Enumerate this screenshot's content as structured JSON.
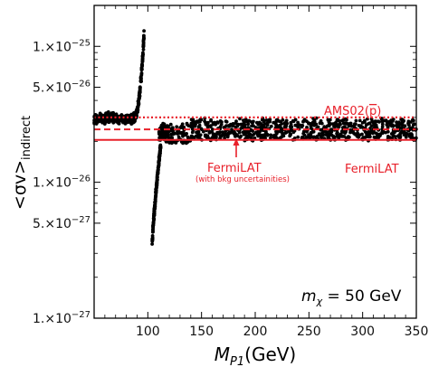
{
  "chart_data": {
    "type": "scatter",
    "x_axis": {
      "label": "M",
      "label_subscript": "P1",
      "label_unit": "(GeV)",
      "lim": [
        50,
        350
      ],
      "ticks": [
        100,
        150,
        200,
        250,
        300,
        350
      ],
      "tick_labels": [
        "100",
        "150",
        "200",
        "250",
        "300",
        "350"
      ]
    },
    "y_axis": {
      "label": "<σv>",
      "label_subscript": "indirect",
      "scale": "log",
      "lim": [
        1e-27,
        2e-25
      ],
      "major_ticks": [
        1e-27,
        5e-27,
        1e-26,
        5e-26,
        1e-25
      ],
      "tick_labels": [
        "1.×10",
        "5.×10",
        "1.×10",
        "5.×10",
        "1.×10"
      ],
      "tick_exponents": [
        "−27",
        "−27",
        "−26",
        "−26",
        "−25"
      ],
      "minor_ticks": [
        2e-27,
        3e-27,
        4e-27,
        6e-27,
        7e-27,
        8e-27,
        9e-27,
        2e-26,
        3e-26,
        4e-26,
        6e-26,
        7e-26,
        8e-26,
        9e-26,
        2e-25
      ]
    },
    "limits": [
      {
        "name": "AMS02",
        "value": 3e-26,
        "style": "dotted",
        "color": "#e8202a"
      },
      {
        "name": "FermiLAT (with bkg uncertainities)",
        "value": 2.45e-26,
        "style": "dashed",
        "color": "#e8202a"
      },
      {
        "name": "FermiLAT",
        "value": 2.05e-26,
        "style": "solid",
        "color": "#e8202a"
      }
    ],
    "series_bands": [
      {
        "x_range": [
          50,
          88
        ],
        "y_range": [
          2.6e-26,
          3.3e-26
        ]
      },
      {
        "x_range": [
          88,
          97
        ],
        "y_peak_at_x": [
          96,
          1.3e-25
        ]
      },
      {
        "x_range": [
          104,
          112
        ],
        "y_trough_at_x": [
          104,
          3.3e-27
        ]
      },
      {
        "x_range": [
          112,
          350
        ],
        "y_range": [
          2.1e-26,
          3e-26
        ]
      }
    ],
    "grid": false,
    "legend": "none"
  },
  "annotations": {
    "ams02_label": "AMS02",
    "ams02_pbar": "p",
    "fermi_bkg_title": "FermiLAT",
    "fermi_bkg_sub": "(with bkg uncertainities)",
    "fermi_label": "FermiLAT",
    "mass_prefix": "m",
    "mass_sub": "χ",
    "mass_value": " = 50 GeV"
  },
  "colors": {
    "points": "#000000",
    "lines": "#e8202a"
  }
}
